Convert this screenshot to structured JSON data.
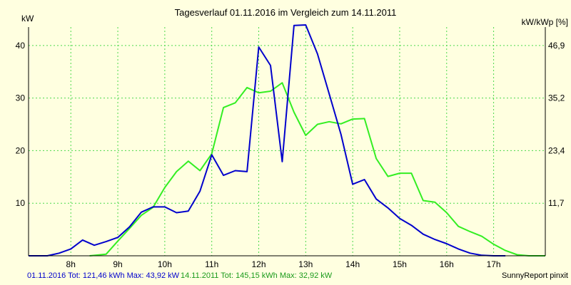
{
  "chart_data": {
    "type": "line",
    "title": "Tagesverlauf 01.11.2016 im Vergleich zum 14.11.2011",
    "ylabel_left": "kW",
    "ylabel_right": "kW/kWp [%]",
    "xlim": [
      7.1,
      18.1
    ],
    "ylim": [
      0,
      43.5
    ],
    "x_ticks": [
      {
        "x": 8,
        "label": "8h"
      },
      {
        "x": 9,
        "label": "9h"
      },
      {
        "x": 10,
        "label": "10h"
      },
      {
        "x": 11,
        "label": "11h"
      },
      {
        "x": 12,
        "label": "12h"
      },
      {
        "x": 13,
        "label": "13h"
      },
      {
        "x": 14,
        "label": "14h"
      },
      {
        "x": 15,
        "label": "15h"
      },
      {
        "x": 16,
        "label": "16h"
      },
      {
        "x": 17,
        "label": "17h"
      }
    ],
    "y_ticks_left": [
      {
        "y": 10,
        "label": "10"
      },
      {
        "y": 20,
        "label": "20"
      },
      {
        "y": 30,
        "label": "30"
      },
      {
        "y": 40,
        "label": "40"
      }
    ],
    "y_ticks_right": [
      {
        "y": 10,
        "label": "11,7"
      },
      {
        "y": 20,
        "label": "23,4"
      },
      {
        "y": 30,
        "label": "35,2"
      },
      {
        "y": 40,
        "label": "46,9"
      }
    ],
    "grid": true,
    "series": [
      {
        "name": "01.11.2016",
        "color": "#0000cc",
        "points": [
          [
            7.1,
            0
          ],
          [
            7.5,
            0
          ],
          [
            7.75,
            0.5
          ],
          [
            8.0,
            1.3
          ],
          [
            8.25,
            3.0
          ],
          [
            8.5,
            2.0
          ],
          [
            8.75,
            2.7
          ],
          [
            9.0,
            3.5
          ],
          [
            9.25,
            5.5
          ],
          [
            9.5,
            8.3
          ],
          [
            9.75,
            9.3
          ],
          [
            10.0,
            9.3
          ],
          [
            10.25,
            8.2
          ],
          [
            10.5,
            8.5
          ],
          [
            10.75,
            12.3
          ],
          [
            11.0,
            19.2
          ],
          [
            11.25,
            15.3
          ],
          [
            11.5,
            16.2
          ],
          [
            11.75,
            16.0
          ],
          [
            12.0,
            39.7
          ],
          [
            12.25,
            36.2
          ],
          [
            12.5,
            17.9
          ],
          [
            12.75,
            43.8
          ],
          [
            13.0,
            43.9
          ],
          [
            13.25,
            38.4
          ],
          [
            13.5,
            30.8
          ],
          [
            13.75,
            23.1
          ],
          [
            14.0,
            13.6
          ],
          [
            14.25,
            14.5
          ],
          [
            14.5,
            10.8
          ],
          [
            14.75,
            9.1
          ],
          [
            15.0,
            7.1
          ],
          [
            15.25,
            5.8
          ],
          [
            15.5,
            4.1
          ],
          [
            15.75,
            3.1
          ],
          [
            16.0,
            2.3
          ],
          [
            16.25,
            1.3
          ],
          [
            16.5,
            0.5
          ],
          [
            16.75,
            0.1
          ],
          [
            17.0,
            0
          ],
          [
            17.25,
            0
          ]
        ]
      },
      {
        "name": "14.11.2011",
        "color": "#33ee22",
        "points": [
          [
            8.4,
            0
          ],
          [
            8.75,
            0.3
          ],
          [
            9.0,
            2.8
          ],
          [
            9.25,
            5.2
          ],
          [
            9.5,
            7.7
          ],
          [
            9.75,
            9.2
          ],
          [
            10.0,
            13.0
          ],
          [
            10.25,
            16.0
          ],
          [
            10.5,
            18.0
          ],
          [
            10.75,
            16.2
          ],
          [
            11.0,
            19.4
          ],
          [
            11.25,
            28.2
          ],
          [
            11.5,
            29.1
          ],
          [
            11.75,
            32.0
          ],
          [
            12.0,
            31.0
          ],
          [
            12.25,
            31.3
          ],
          [
            12.5,
            32.9
          ],
          [
            12.75,
            27.3
          ],
          [
            13.0,
            22.9
          ],
          [
            13.25,
            25.0
          ],
          [
            13.5,
            25.5
          ],
          [
            13.75,
            25.1
          ],
          [
            14.0,
            26.0
          ],
          [
            14.25,
            26.1
          ],
          [
            14.5,
            18.5
          ],
          [
            14.75,
            15.1
          ],
          [
            15.0,
            15.7
          ],
          [
            15.25,
            15.7
          ],
          [
            15.5,
            10.5
          ],
          [
            15.75,
            10.2
          ],
          [
            16.0,
            8.2
          ],
          [
            16.25,
            5.6
          ],
          [
            16.5,
            4.6
          ],
          [
            16.75,
            3.7
          ],
          [
            17.0,
            2.2
          ],
          [
            17.25,
            1.0
          ],
          [
            17.5,
            0.2
          ],
          [
            17.75,
            0
          ],
          [
            18.1,
            0
          ]
        ]
      }
    ]
  },
  "footer": {
    "series1_summary": "01.11.2016 Tot: 121,46 kWh Max: 43,92 kW",
    "series2_summary": "14.11.2011 Tot: 145,15 kWh Max: 32,92 kW",
    "credit": "SunnyReport pinxit"
  },
  "colors": {
    "background": "#ffffe0",
    "grid": "#4cd94c",
    "axis": "#000000",
    "series1": "#0000cc",
    "series2": "#33ee22",
    "footer_text1": "#0000cc",
    "footer_text2": "#1a9a1a"
  }
}
